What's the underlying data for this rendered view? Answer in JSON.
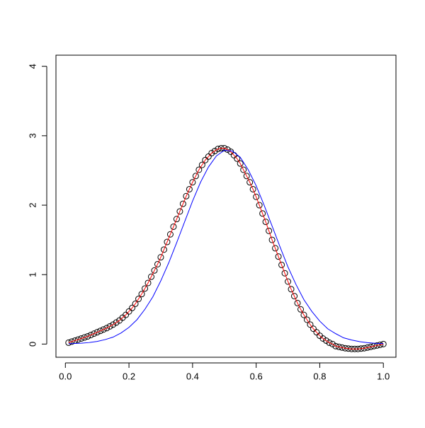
{
  "chart_data": {
    "type": "line",
    "xlim": [
      -0.0296,
      1.0396
    ],
    "ylim": [
      -0.19,
      4.16
    ],
    "xticks": [
      {
        "value": 0,
        "label": "0.0"
      },
      0.2,
      0.4,
      0.6,
      0.8,
      {
        "value": 1,
        "label": "1.0"
      }
    ],
    "yticks": [
      0,
      1,
      2,
      3,
      4
    ],
    "series": [
      {
        "color": "#ff0000",
        "marker": "circle",
        "marker_color": "#000000",
        "x": [
          0.01,
          0.02,
          0.03,
          0.04,
          0.05,
          0.06,
          0.07,
          0.08,
          0.09,
          0.1,
          0.11,
          0.12,
          0.13,
          0.14,
          0.15,
          0.16,
          0.17,
          0.18,
          0.19,
          0.2,
          0.21,
          0.22,
          0.23,
          0.24,
          0.25,
          0.26,
          0.27,
          0.28,
          0.29,
          0.3,
          0.31,
          0.32,
          0.33,
          0.34,
          0.35,
          0.36,
          0.37,
          0.38,
          0.39,
          0.4,
          0.41,
          0.42,
          0.43,
          0.44,
          0.45,
          0.46,
          0.47,
          0.48,
          0.49,
          0.5,
          0.51,
          0.52,
          0.53,
          0.54,
          0.55,
          0.56,
          0.57,
          0.58,
          0.59,
          0.6,
          0.61,
          0.62,
          0.63,
          0.64,
          0.65,
          0.66,
          0.67,
          0.68,
          0.69,
          0.7,
          0.71,
          0.72,
          0.73,
          0.74,
          0.75,
          0.76,
          0.77,
          0.78,
          0.79,
          0.8,
          0.81,
          0.82,
          0.83,
          0.84,
          0.85,
          0.86,
          0.87,
          0.88,
          0.89,
          0.9,
          0.91,
          0.92,
          0.93,
          0.94,
          0.95,
          0.96,
          0.97,
          0.98,
          0.99,
          1.0
        ],
        "values": [
          0.02,
          0.035,
          0.05,
          0.065,
          0.08,
          0.095,
          0.11,
          0.13,
          0.15,
          0.17,
          0.19,
          0.21,
          0.23,
          0.255,
          0.28,
          0.31,
          0.34,
          0.38,
          0.42,
          0.47,
          0.52,
          0.58,
          0.65,
          0.72,
          0.8,
          0.88,
          0.97,
          1.06,
          1.15,
          1.25,
          1.36,
          1.47,
          1.58,
          1.69,
          1.8,
          1.91,
          2.02,
          2.13,
          2.23,
          2.33,
          2.42,
          2.51,
          2.58,
          2.65,
          2.7,
          2.75,
          2.78,
          2.81,
          2.82,
          2.82,
          2.8,
          2.77,
          2.72,
          2.67,
          2.6,
          2.51,
          2.42,
          2.33,
          2.23,
          2.12,
          2.0,
          1.88,
          1.76,
          1.63,
          1.5,
          1.38,
          1.26,
          1.14,
          1.02,
          0.9,
          0.79,
          0.69,
          0.59,
          0.5,
          0.42,
          0.35,
          0.28,
          0.22,
          0.17,
          0.12,
          0.08,
          0.05,
          0.02,
          0.0,
          -0.03,
          -0.04,
          -0.05,
          -0.06,
          -0.065,
          -0.07,
          -0.07,
          -0.07,
          -0.065,
          -0.06,
          -0.05,
          -0.04,
          -0.03,
          -0.02,
          -0.01,
          0.0
        ]
      },
      {
        "color": "#0000ff",
        "x": [
          0.01,
          0.025,
          0.05,
          0.075,
          0.1,
          0.125,
          0.15,
          0.175,
          0.2,
          0.225,
          0.25,
          0.275,
          0.3,
          0.325,
          0.35,
          0.375,
          0.4,
          0.425,
          0.45,
          0.475,
          0.5,
          0.525,
          0.55,
          0.575,
          0.6,
          0.625,
          0.65,
          0.675,
          0.7,
          0.725,
          0.75,
          0.775,
          0.8,
          0.825,
          0.85,
          0.875,
          0.9,
          0.925,
          0.95,
          0.975,
          1.0
        ],
        "values": [
          0.005,
          0.007,
          0.013,
          0.022,
          0.038,
          0.064,
          0.1,
          0.16,
          0.24,
          0.35,
          0.5,
          0.68,
          0.91,
          1.17,
          1.46,
          1.76,
          2.06,
          2.33,
          2.55,
          2.71,
          2.79,
          2.78,
          2.69,
          2.51,
          2.28,
          2.0,
          1.7,
          1.4,
          1.11,
          0.86,
          0.64,
          0.47,
          0.33,
          0.22,
          0.15,
          0.09,
          0.058,
          0.035,
          0.02,
          0.011,
          0.006
        ]
      }
    ]
  }
}
